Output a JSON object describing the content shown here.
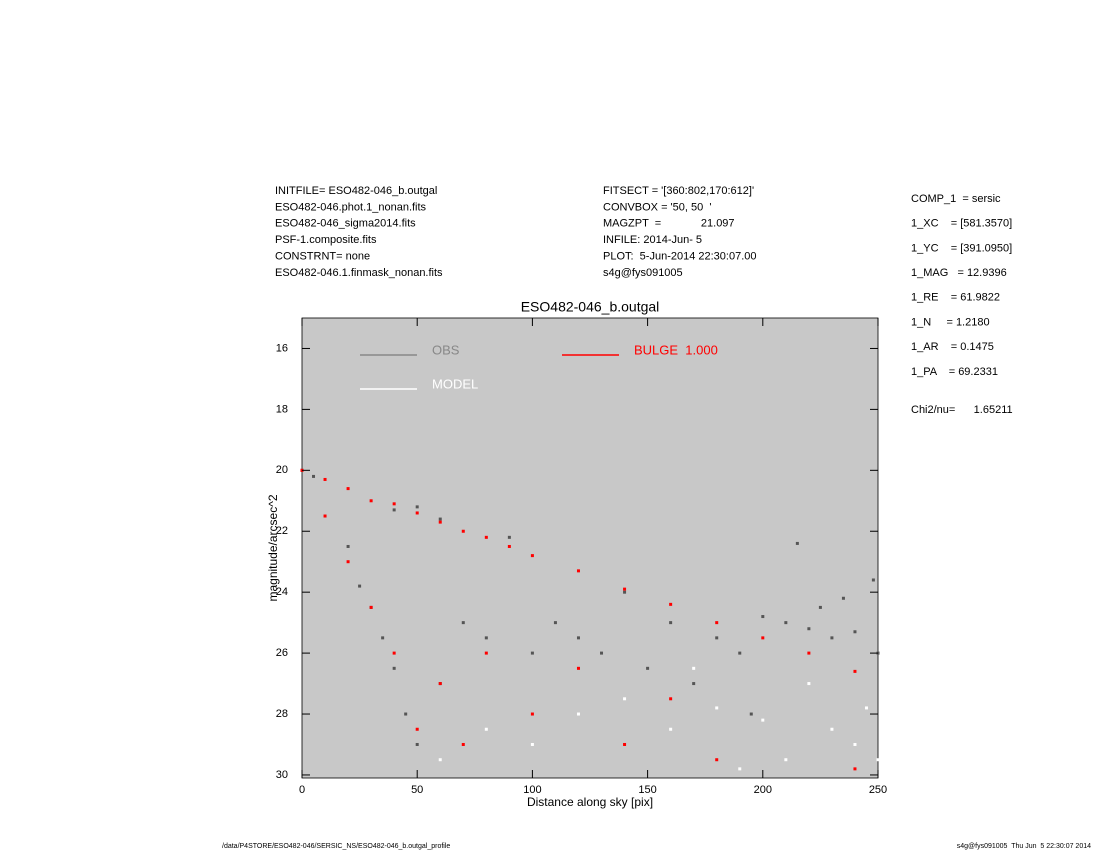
{
  "chart_data": {
    "type": "scatter",
    "title": "ESO482-046_b.outgal",
    "xlabel": "Distance along sky [pix]",
    "ylabel": "magnitude/arcsec^2",
    "xlim": [
      0,
      250
    ],
    "ylim": [
      30.1,
      15.0
    ],
    "xticks": [
      0,
      50,
      100,
      150,
      200,
      250
    ],
    "yticks": [
      16,
      18,
      20,
      22,
      24,
      26,
      28,
      30
    ],
    "background": "#c8c8c8",
    "series": [
      {
        "name": "OBS",
        "color": "#555555",
        "legend_color": "#888888",
        "x": [
          0,
          5,
          20,
          25,
          30,
          35,
          40,
          45,
          50,
          40,
          50,
          60,
          70,
          80,
          90,
          100,
          110,
          120,
          130,
          140,
          150,
          160,
          170,
          180,
          190,
          200,
          210,
          220,
          230,
          240,
          250,
          225,
          235,
          248,
          215,
          195,
          60
        ],
        "values": [
          20,
          20.2,
          22.5,
          23.8,
          24.5,
          25.5,
          26.5,
          28,
          29,
          21.3,
          21.2,
          21.6,
          25,
          25.5,
          22.2,
          26,
          25,
          25.5,
          26,
          24,
          26.5,
          25,
          27,
          25.5,
          26,
          24.8,
          25,
          25.2,
          25.5,
          25.3,
          26,
          24.5,
          24.2,
          23.6,
          22.4,
          28,
          27
        ]
      },
      {
        "name": "MODEL",
        "color": "#ffffff",
        "legend_color": "#ffffff",
        "x": [
          60,
          80,
          100,
          120,
          140,
          160,
          180,
          200,
          210,
          220,
          230,
          240,
          245,
          250,
          170,
          190
        ],
        "values": [
          29.5,
          28.5,
          29,
          28,
          27.5,
          28.5,
          27.8,
          28.2,
          29.5,
          27,
          28.5,
          29,
          27.8,
          29.5,
          26.5,
          29.8
        ]
      },
      {
        "name": "BULGE  1.000",
        "color": "#ff0000",
        "legend_color": "#ff0000",
        "x": [
          0,
          10,
          10,
          20,
          20,
          30,
          30,
          40,
          40,
          50,
          50,
          60,
          60,
          70,
          70,
          80,
          80,
          90,
          100,
          100,
          120,
          120,
          140,
          140,
          160,
          160,
          180,
          180,
          200,
          220,
          240,
          240
        ],
        "values": [
          20,
          20.3,
          21.5,
          20.6,
          23,
          21,
          24.5,
          21.1,
          26,
          21.4,
          28.5,
          21.7,
          27,
          22,
          29,
          22.2,
          26,
          22.5,
          22.8,
          28,
          23.3,
          26.5,
          23.9,
          29,
          24.4,
          27.5,
          25,
          29.5,
          25.5,
          26,
          26.6,
          29.8
        ]
      }
    ],
    "header_left": [
      "INITFILE= ESO482-046_b.outgal",
      "ESO482-046.phot.1_nonan.fits",
      "ESO482-046_sigma2014.fits",
      "PSF-1.composite.fits",
      "CONSTRNT= none",
      "ESO482-046.1.finmask_nonan.fits"
    ],
    "header_middle": [
      "FITSECT = '[360:802,170:612]'",
      "CONVBOX = '50, 50  '",
      "MAGZPT  =             21.097",
      "INFILE: 2014-Jun- 5",
      "PLOT:  5-Jun-2014 22:30:07.00",
      "s4g@fys091005"
    ],
    "parameters": [
      "COMP_1  = sersic",
      "1_XC    = [581.3570]",
      "1_YC    = [391.0950]",
      "1_MAG   = 12.9396",
      "1_RE    = 61.9822",
      "1_N     = 1.2180",
      "1_AR    = 0.1475",
      "1_PA    = 69.2331",
      "Chi2/nu=      1.65211"
    ],
    "footer_left": "/data/P4STORE/ESO482-046/SERSIC_NS/ESO482-046_b.outgal_profile",
    "footer_right": "s4g@fys091005  Thu Jun  5 22:30:07 2014"
  }
}
